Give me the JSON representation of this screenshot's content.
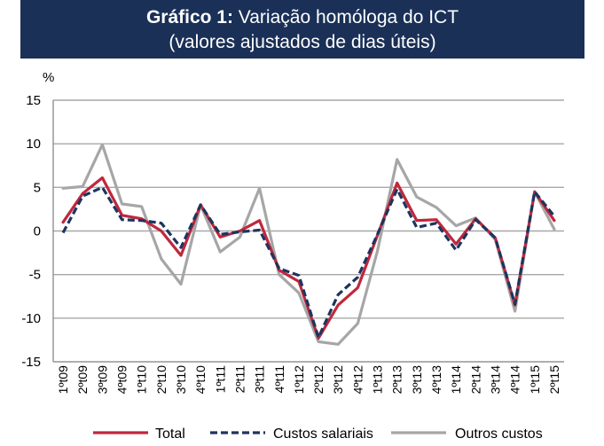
{
  "title": {
    "bold": "Gráfico 1:",
    "rest": " Variação homóloga do ICT",
    "subtitle": "(valores ajustados de dias úteis)"
  },
  "chart_data": {
    "type": "line",
    "title": "Gráfico 1: Variação homóloga do ICT (valores ajustados de dias úteis)",
    "ylabel": "%",
    "xlabel": "",
    "ylim": [
      -15,
      15
    ],
    "yticks": [
      15,
      10,
      5,
      0,
      -5,
      -10,
      -15
    ],
    "grid": true,
    "legend_position": "bottom",
    "categories": [
      "1ºt09",
      "2ºt09",
      "3ºt09",
      "4ºt09",
      "1ºt10",
      "2ºt10",
      "3ºt10",
      "4ºt10",
      "1ºt11",
      "2ºt11",
      "3ºt11",
      "4ºt11",
      "1ºt12",
      "2ºt12",
      "3ºt12",
      "4ºt12",
      "1ºt13",
      "2ºt13",
      "3ºt13",
      "4ºt13",
      "1ºt14",
      "2ºt14",
      "3ºt14",
      "4ºt14",
      "1ºt15",
      "2ºt15"
    ],
    "series": [
      {
        "name": "Total",
        "color": "#c0273d",
        "style": "solid",
        "values": [
          1.0,
          4.3,
          6.1,
          1.8,
          1.4,
          0.0,
          -2.8,
          3.0,
          -0.7,
          0.0,
          1.2,
          -4.5,
          -5.8,
          -12.3,
          -8.5,
          -6.5,
          -0.5,
          5.5,
          1.2,
          1.3,
          -1.5,
          1.4,
          -0.8,
          -8.5,
          4.5,
          1.2
        ]
      },
      {
        "name": "Custos salariais",
        "color": "#1c355e",
        "style": "dashed",
        "values": [
          -0.2,
          4.0,
          5.0,
          1.3,
          1.2,
          0.9,
          -1.9,
          3.0,
          -0.4,
          -0.1,
          0.1,
          -4.3,
          -5.1,
          -12.2,
          -7.3,
          -5.3,
          -0.4,
          4.8,
          0.4,
          0.9,
          -2.2,
          1.3,
          -0.8,
          -8.4,
          4.5,
          1.7
        ]
      },
      {
        "name": "Outros custos",
        "color": "#a6a6a6",
        "style": "solid",
        "values": [
          4.9,
          5.1,
          9.9,
          3.1,
          2.8,
          -3.2,
          -6.1,
          3.0,
          -2.4,
          -0.7,
          4.9,
          -5.0,
          -7.1,
          -12.7,
          -13.0,
          -10.6,
          -2.3,
          8.2,
          3.9,
          2.7,
          0.6,
          1.5,
          -1.0,
          -9.2,
          4.5,
          0.2
        ]
      }
    ]
  }
}
